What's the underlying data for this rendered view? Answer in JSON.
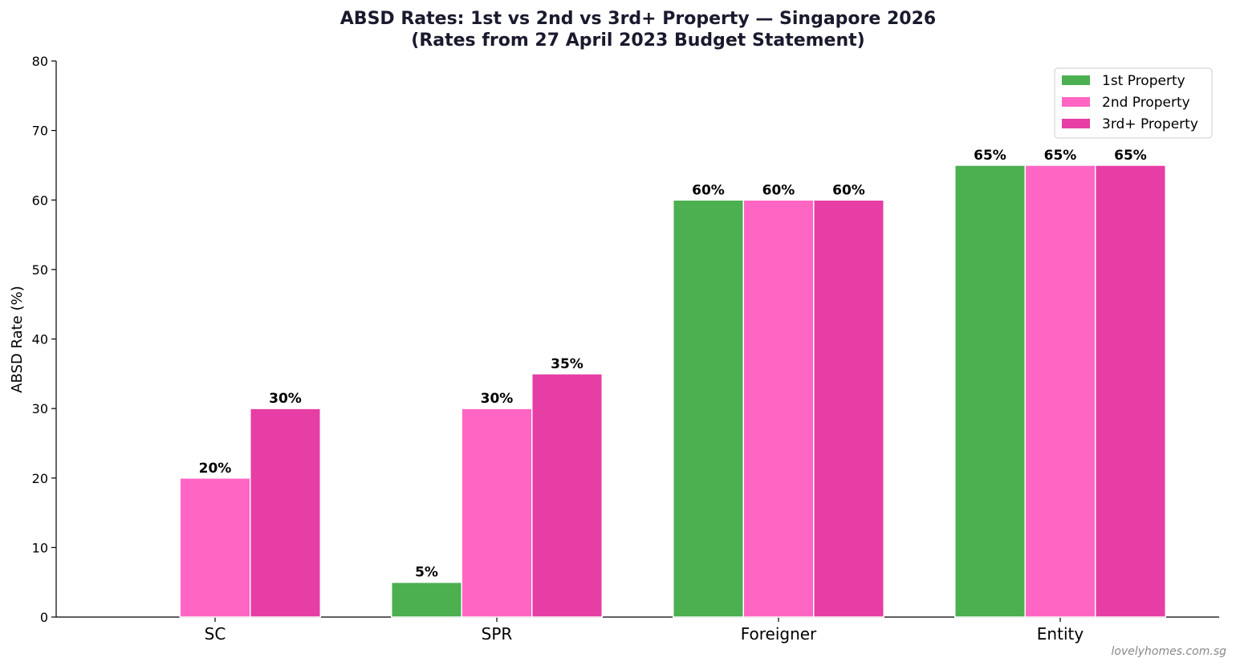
{
  "chart_data": {
    "type": "bar",
    "title_line1": "ABSD Rates: 1st vs 2nd vs 3rd+ Property — Singapore 2026",
    "title_line2": "(Rates from 27 April 2023 Budget Statement)",
    "xlabel": "",
    "ylabel": "ABSD Rate (%)",
    "ylim": [
      0,
      80
    ],
    "yticks": [
      0,
      10,
      20,
      30,
      40,
      50,
      60,
      70,
      80
    ],
    "categories": [
      "SC",
      "SPR",
      "Foreigner",
      "Entity"
    ],
    "series": [
      {
        "name": "1st Property",
        "color": "#4CAF50",
        "values": [
          0,
          5,
          60,
          65
        ]
      },
      {
        "name": "2nd Property",
        "color": "#FF66C4",
        "values": [
          20,
          30,
          60,
          65
        ]
      },
      {
        "name": "3rd+ Property",
        "color": "#E63EA4",
        "values": [
          30,
          35,
          60,
          65
        ]
      }
    ],
    "label_suffix": "%",
    "legend_position": "top-right",
    "grid": false
  },
  "watermark": "lovelyhomes.com.sg"
}
